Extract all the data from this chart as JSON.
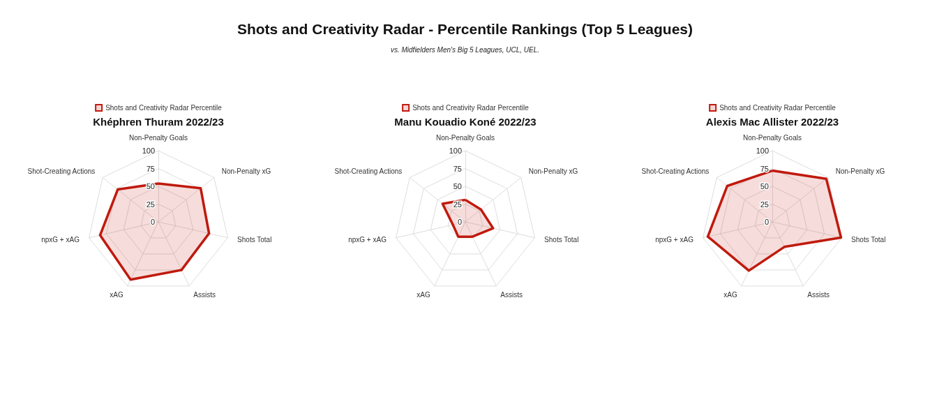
{
  "chart_data": [
    {
      "type": "radar",
      "title": "Khéphren Thuram 2022/23",
      "annotations": [
        "Shots and Creativity Radar - Percentile Rankings (Top 5 Leagues)",
        "vs. Midfielders Men's Big 5 Leagues, UCL, UEL."
      ],
      "categories": [
        "Non-Penalty Goals",
        "Non-Penalty xG",
        "Shots Total",
        "Assists",
        "xAG",
        "npxG + xAG",
        "Shot-Creating Actions"
      ],
      "series": [
        {
          "name": "Shots and Creativity Radar Percentile",
          "color": "#c01a0f",
          "values": [
            54,
            76,
            73,
            75,
            90,
            84,
            73
          ]
        }
      ],
      "ylim": [
        0,
        100
      ],
      "yticks": [
        0,
        25,
        50,
        75,
        100
      ],
      "grid": true,
      "legend": "top",
      "marker": "none"
    },
    {
      "type": "radar",
      "title": "Manu Kouadio Koné 2022/23",
      "categories": [
        "Non-Penalty Goals",
        "Non-Penalty xG",
        "Shots Total",
        "Assists",
        "xAG",
        "npxG + xAG",
        "Shot-Creating Actions"
      ],
      "series": [
        {
          "name": "Shots and Creativity Radar Percentile",
          "color": "#c01a0f",
          "values": [
            31,
            28,
            40,
            23,
            23,
            18,
            41
          ]
        }
      ],
      "ylim": [
        0,
        100
      ],
      "yticks": [
        0,
        25,
        50,
        75,
        100
      ],
      "grid": true,
      "legend": "top",
      "marker": "none"
    },
    {
      "type": "radar",
      "title": "Alexis Mac Allister 2022/23",
      "categories": [
        "Non-Penalty Goals",
        "Non-Penalty xG",
        "Shots Total",
        "Assists",
        "xAG",
        "npxG + xAG",
        "Shot-Creating Actions"
      ],
      "series": [
        {
          "name": "Shots and Creativity Radar Percentile",
          "color": "#c01a0f",
          "values": [
            72,
            97,
            99,
            39,
            76,
            93,
            81
          ]
        }
      ],
      "ylim": [
        0,
        100
      ],
      "yticks": [
        0,
        25,
        50,
        75,
        100
      ],
      "grid": true,
      "legend": "top",
      "marker": "none"
    }
  ]
}
